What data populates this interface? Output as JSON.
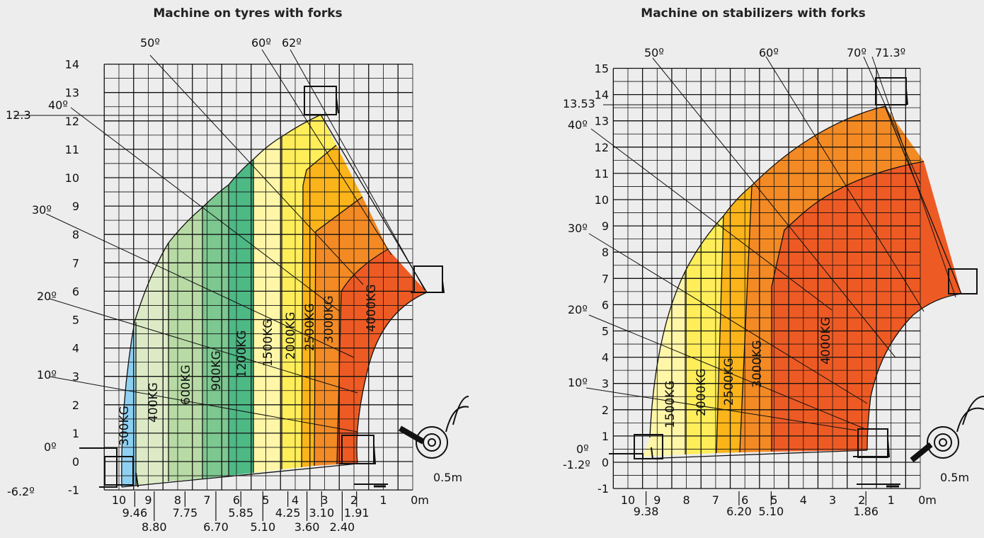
{
  "colors": {
    "blue": "#8ed0f2",
    "pale_green": "#dcebc6",
    "light_green": "#b8dba6",
    "mid_green": "#7dc790",
    "green": "#4db985",
    "pale_yellow": "#fff6a8",
    "yellow": "#ffee5a",
    "amber": "#fbb419",
    "orange": "#f38a24",
    "red_orange": "#ee5a24"
  },
  "left": {
    "title": "Machine on tyres with forks",
    "y_ticks": [
      "-1",
      "0",
      "1",
      "2",
      "3",
      "4",
      "5",
      "6",
      "7",
      "8",
      "9",
      "10",
      "11",
      "12",
      "13",
      "14"
    ],
    "x_ticks": [
      "10",
      "9",
      "8",
      "7",
      "6",
      "5",
      "4",
      "3",
      "2",
      "1",
      "0m"
    ],
    "x_marks_row1": [
      "9.46",
      "7.75",
      "5.85",
      "4.25",
      "3.10",
      "1.91"
    ],
    "x_marks_row2": [
      "8.80",
      "6.70",
      "5.10",
      "3.60",
      "2.40"
    ],
    "max_height": "12.3",
    "scale_label": "0.5m",
    "angles": [
      "50º",
      "60º",
      "62º",
      "40º",
      "30º",
      "20º",
      "10º",
      "0º",
      "-6.2º"
    ],
    "zones": [
      "300KG",
      "400KG",
      "600KG",
      "900KG",
      "1200KG",
      "1500KG",
      "2000KG",
      "2500KG",
      "3000KG",
      "4000KG"
    ]
  },
  "right": {
    "title": "Machine on stabilizers with forks",
    "y_ticks": [
      "-1",
      "0",
      "1",
      "2",
      "3",
      "4",
      "5",
      "6",
      "7",
      "8",
      "9",
      "10",
      "11",
      "12",
      "13",
      "14",
      "15"
    ],
    "x_ticks": [
      "10",
      "9",
      "8",
      "7",
      "6",
      "5",
      "4",
      "3",
      "2",
      "1",
      "0m"
    ],
    "x_marks": [
      "9.38",
      "6.20",
      "5.10",
      "1.86"
    ],
    "max_height": "13.53",
    "scale_label": "0.5m",
    "angles": [
      "50º",
      "60º",
      "70º",
      "71.3º",
      "40º",
      "30º",
      "20º",
      "10º",
      "0º",
      "-1.2º"
    ],
    "zones": [
      "1500KG",
      "2000KG",
      "2500KG",
      "3000KG",
      "4000KG"
    ]
  }
}
